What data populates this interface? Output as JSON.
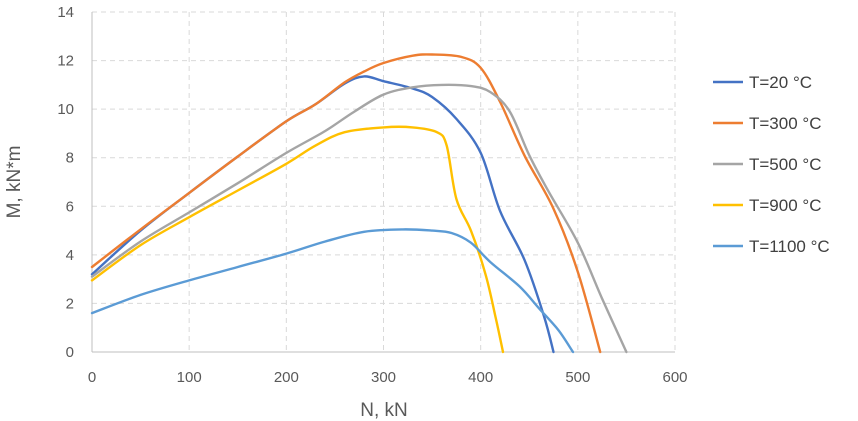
{
  "chart_data": {
    "type": "line",
    "title": "",
    "xlabel": "N, kN",
    "ylabel": "M, kN*m",
    "xlim": [
      0,
      600
    ],
    "ylim": [
      0,
      14
    ],
    "xticks": [
      0,
      100,
      200,
      300,
      400,
      500,
      600
    ],
    "yticks": [
      0,
      2,
      4,
      6,
      8,
      10,
      12,
      14
    ],
    "grid": true,
    "legend_position": "right",
    "series": [
      {
        "name": "T=20 °C",
        "color": "#4472C4",
        "points": [
          [
            0,
            3.2
          ],
          [
            50,
            5
          ],
          [
            100,
            6.55
          ],
          [
            150,
            8.05
          ],
          [
            200,
            9.5
          ],
          [
            230,
            10.2
          ],
          [
            260,
            11.05
          ],
          [
            280,
            11.35
          ],
          [
            300,
            11.15
          ],
          [
            330,
            10.85
          ],
          [
            350,
            10.5
          ],
          [
            375,
            9.6
          ],
          [
            400,
            8.2
          ],
          [
            420,
            5.8
          ],
          [
            445,
            3.8
          ],
          [
            465,
            1.5
          ],
          [
            475,
            0
          ]
        ]
      },
      {
        "name": "T=300 °C",
        "color": "#ED7D31",
        "points": [
          [
            0,
            3.5
          ],
          [
            50,
            5.05
          ],
          [
            100,
            6.55
          ],
          [
            150,
            8.05
          ],
          [
            200,
            9.5
          ],
          [
            230,
            10.2
          ],
          [
            260,
            11.1
          ],
          [
            280,
            11.55
          ],
          [
            300,
            11.9
          ],
          [
            330,
            12.2
          ],
          [
            350,
            12.25
          ],
          [
            380,
            12.15
          ],
          [
            400,
            11.7
          ],
          [
            420,
            10.3
          ],
          [
            445,
            8.1
          ],
          [
            475,
            5.9
          ],
          [
            500,
            3.3
          ],
          [
            523,
            0
          ]
        ]
      },
      {
        "name": "T=500 °C",
        "color": "#A5A5A5",
        "points": [
          [
            0,
            3.1
          ],
          [
            50,
            4.55
          ],
          [
            100,
            5.75
          ],
          [
            150,
            6.95
          ],
          [
            200,
            8.2
          ],
          [
            240,
            9.1
          ],
          [
            270,
            9.9
          ],
          [
            300,
            10.6
          ],
          [
            330,
            10.9
          ],
          [
            360,
            11
          ],
          [
            390,
            10.95
          ],
          [
            410,
            10.7
          ],
          [
            430,
            9.9
          ],
          [
            450,
            8.1
          ],
          [
            470,
            6.6
          ],
          [
            500,
            4.5
          ],
          [
            525,
            2.2
          ],
          [
            550,
            0
          ]
        ]
      },
      {
        "name": "T=900 °C",
        "color": "#FFC000",
        "points": [
          [
            0,
            2.95
          ],
          [
            50,
            4.4
          ],
          [
            100,
            5.55
          ],
          [
            150,
            6.65
          ],
          [
            200,
            7.75
          ],
          [
            230,
            8.5
          ],
          [
            260,
            9.05
          ],
          [
            300,
            9.25
          ],
          [
            330,
            9.25
          ],
          [
            355,
            9.05
          ],
          [
            365,
            8.5
          ],
          [
            375,
            6.3
          ],
          [
            390,
            5
          ],
          [
            405,
            3.2
          ],
          [
            415,
            1.5
          ],
          [
            423,
            0
          ]
        ]
      },
      {
        "name": "T=1100 °C",
        "color": "#5B9BD5",
        "points": [
          [
            0,
            1.6
          ],
          [
            50,
            2.35
          ],
          [
            100,
            2.95
          ],
          [
            150,
            3.5
          ],
          [
            200,
            4.05
          ],
          [
            240,
            4.55
          ],
          [
            280,
            4.95
          ],
          [
            320,
            5.05
          ],
          [
            350,
            5
          ],
          [
            370,
            4.9
          ],
          [
            390,
            4.5
          ],
          [
            410,
            3.7
          ],
          [
            440,
            2.7
          ],
          [
            460,
            1.8
          ],
          [
            480,
            0.9
          ],
          [
            495,
            0
          ]
        ]
      }
    ]
  }
}
